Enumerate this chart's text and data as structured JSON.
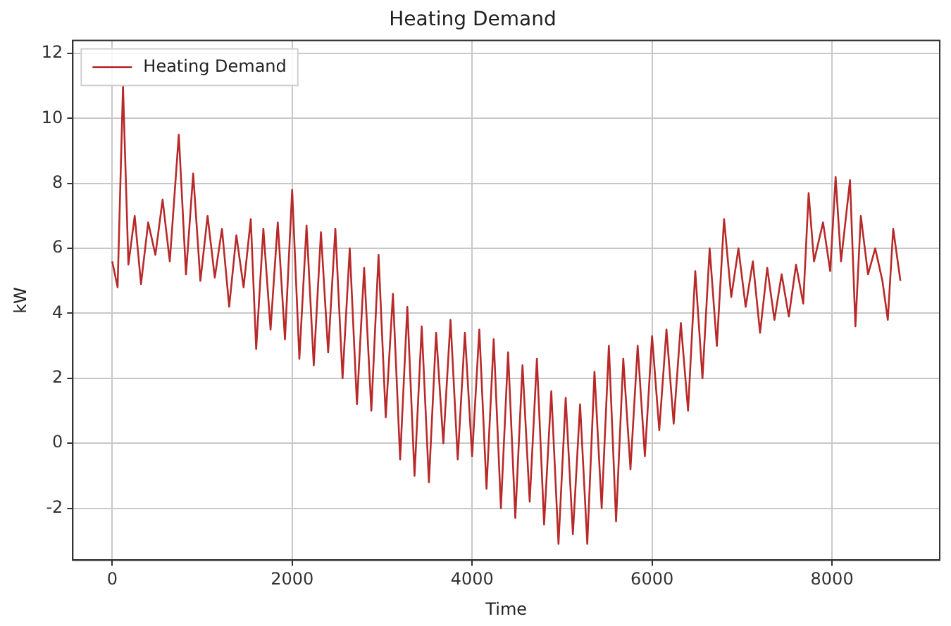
{
  "chart_data": {
    "type": "line",
    "title": "Heating Demand",
    "xlabel": "Time",
    "ylabel": "kW",
    "xlim": [
      -438,
      9197
    ],
    "ylim": [
      -3.6,
      12.4
    ],
    "xticks": [
      0,
      2000,
      4000,
      6000,
      8000
    ],
    "yticks": [
      -2,
      0,
      2,
      4,
      6,
      8,
      10,
      12
    ],
    "grid": true,
    "legend": "top left",
    "marker": "none",
    "line_style": "solid",
    "series": [
      {
        "name": "Heating Demand",
        "color": "#b82a2a",
        "x": [
          0,
          60,
          120,
          180,
          250,
          320,
          400,
          480,
          560,
          640,
          740,
          820,
          900,
          980,
          1060,
          1140,
          1220,
          1300,
          1380,
          1460,
          1540,
          1600,
          1680,
          1760,
          1840,
          1920,
          2000,
          2080,
          2160,
          2240,
          2320,
          2400,
          2480,
          2560,
          2640,
          2720,
          2800,
          2880,
          2960,
          3040,
          3120,
          3200,
          3280,
          3360,
          3440,
          3520,
          3600,
          3680,
          3760,
          3840,
          3920,
          4000,
          4080,
          4160,
          4240,
          4320,
          4400,
          4480,
          4560,
          4640,
          4720,
          4800,
          4880,
          4960,
          5040,
          5120,
          5200,
          5280,
          5360,
          5440,
          5520,
          5600,
          5680,
          5760,
          5840,
          5920,
          6000,
          6080,
          6160,
          6240,
          6320,
          6400,
          6480,
          6560,
          6640,
          6720,
          6800,
          6880,
          6960,
          7040,
          7120,
          7200,
          7280,
          7360,
          7440,
          7520,
          7600,
          7680,
          7740,
          7800,
          7900,
          7980,
          8040,
          8100,
          8200,
          8260,
          8320,
          8400,
          8480,
          8560,
          8620,
          8680,
          8760
        ],
        "values": [
          5.6,
          4.8,
          11.0,
          5.5,
          7.0,
          4.9,
          6.8,
          5.8,
          7.5,
          5.6,
          9.5,
          5.2,
          8.3,
          5.0,
          7.0,
          5.1,
          6.6,
          4.2,
          6.4,
          4.8,
          6.9,
          2.9,
          6.6,
          3.5,
          6.8,
          3.2,
          7.8,
          2.6,
          6.7,
          2.4,
          6.5,
          2.8,
          6.6,
          2.0,
          6.0,
          1.2,
          5.4,
          1.0,
          5.8,
          0.8,
          4.6,
          -0.5,
          4.2,
          -1.0,
          3.6,
          -1.2,
          3.4,
          0.0,
          3.8,
          -0.5,
          3.4,
          -0.4,
          3.5,
          -1.4,
          3.2,
          -2.0,
          2.8,
          -2.3,
          2.4,
          -1.8,
          2.6,
          -2.5,
          1.6,
          -3.1,
          1.4,
          -2.8,
          1.2,
          -3.1,
          2.2,
          -2.0,
          3.0,
          -2.4,
          2.6,
          -0.8,
          3.0,
          -0.4,
          3.3,
          0.4,
          3.5,
          0.6,
          3.7,
          1.0,
          5.3,
          2.0,
          6.0,
          3.0,
          6.9,
          4.5,
          6.0,
          4.2,
          5.6,
          3.4,
          5.4,
          3.8,
          5.2,
          3.9,
          5.5,
          4.3,
          7.7,
          5.6,
          6.8,
          5.3,
          8.2,
          5.6,
          8.1,
          3.6,
          7.0,
          5.2,
          6.0,
          5.0,
          3.8,
          6.6,
          5.0
        ]
      }
    ]
  }
}
